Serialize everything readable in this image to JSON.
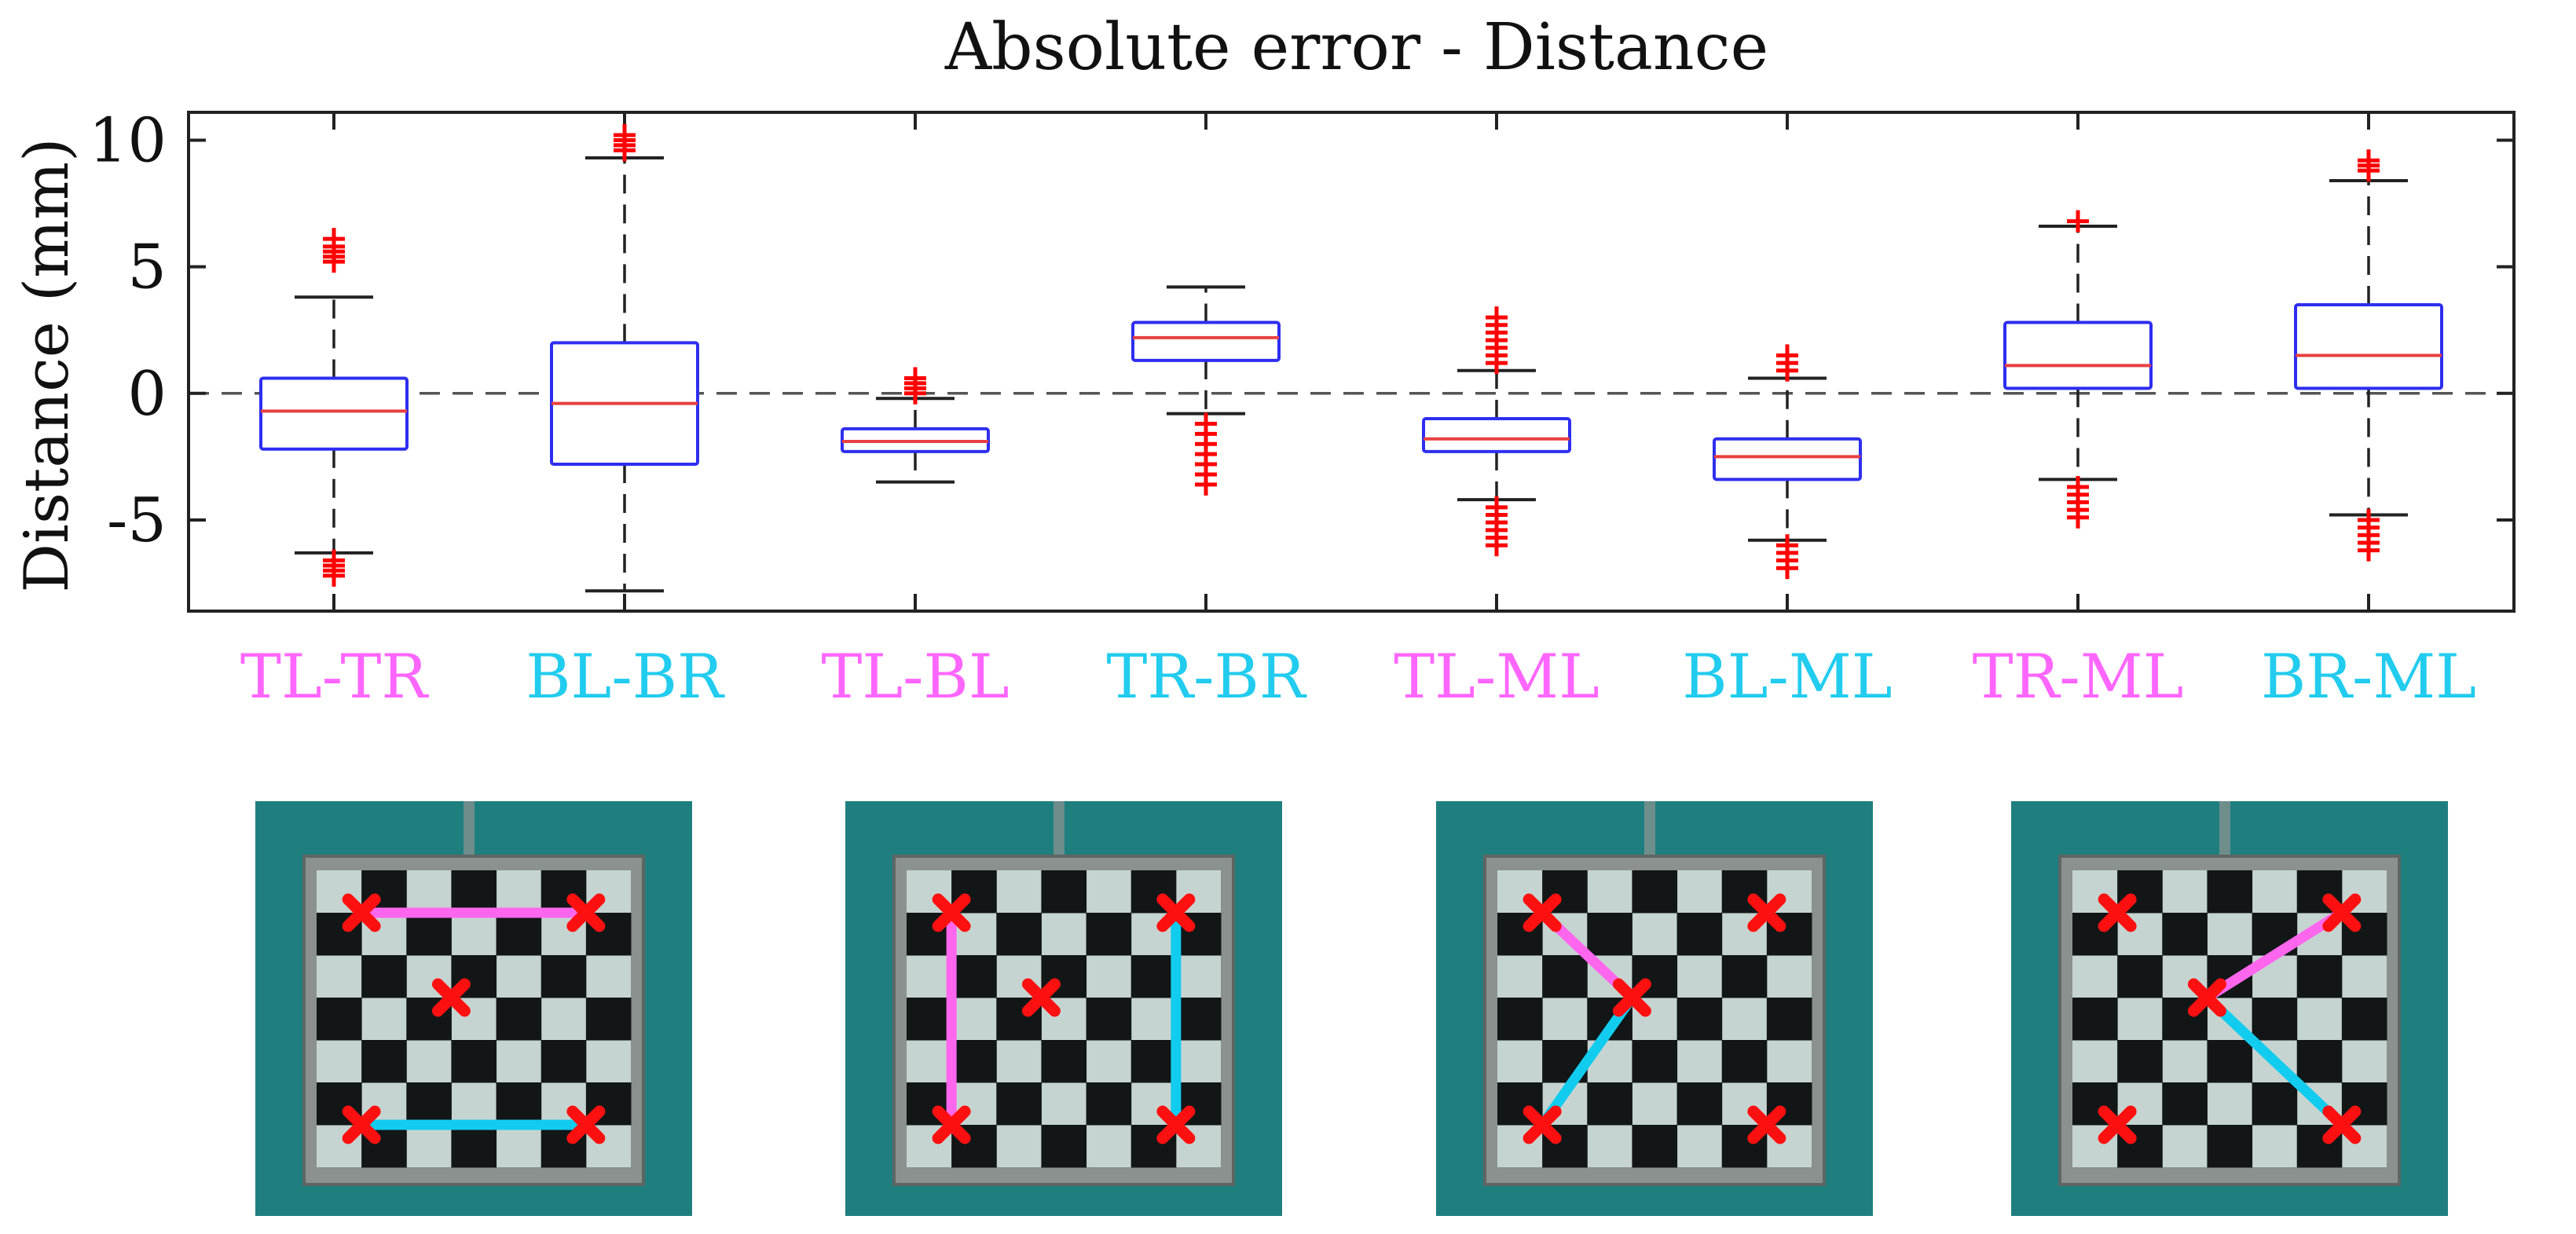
{
  "chart_data": {
    "type": "box",
    "title": "Absolute error - Distance",
    "ylabel": "Distance (mm)",
    "xlabel": "",
    "ylim": [
      -8.6,
      11.1
    ],
    "yticks": [
      10,
      5,
      0,
      -5
    ],
    "ytick_labels": [
      "10",
      "5",
      "0",
      "-5"
    ],
    "reference_line": 0,
    "grid": false,
    "colors": {
      "box": "#2e2ef0",
      "median": "#e84040",
      "whisker": "#222222",
      "outlier": "#ff0000",
      "label_magenta": "#ff66ff",
      "label_cyan": "#22ccee",
      "segment_magenta": "#ff66ee",
      "segment_cyan": "#11ccee",
      "marker": "#ff1010",
      "water": "#1f7f7f"
    },
    "categories": [
      "TL-TR",
      "BL-BR",
      "TL-BL",
      "TR-BR",
      "TL-ML",
      "BL-ML",
      "TR-ML",
      "BR-ML"
    ],
    "category_colors": [
      "magenta",
      "cyan",
      "magenta",
      "cyan",
      "magenta",
      "cyan",
      "magenta",
      "cyan"
    ],
    "boxes": [
      {
        "label": "TL-TR",
        "whisker_low": -6.3,
        "q1": -2.2,
        "median": -0.7,
        "q3": 0.6,
        "whisker_high": 3.8,
        "outliers_low": [
          -6.6,
          -6.8,
          -7.0,
          -7.2
        ],
        "outliers_high": [
          5.2,
          5.4,
          5.6,
          5.8,
          6.1
        ]
      },
      {
        "label": "BL-BR",
        "whisker_low": -7.8,
        "q1": -2.8,
        "median": -0.4,
        "q3": 2.0,
        "whisker_high": 9.3,
        "outliers_low": [],
        "outliers_high": [
          9.6,
          9.8,
          10.0,
          10.2
        ]
      },
      {
        "label": "TL-BL",
        "whisker_low": -3.5,
        "q1": -2.3,
        "median": -1.9,
        "q3": -1.4,
        "whisker_high": -0.2,
        "outliers_low": [],
        "outliers_high": [
          0.0,
          0.2,
          0.4,
          0.6
        ]
      },
      {
        "label": "TR-BR",
        "whisker_low": -0.8,
        "q1": 1.3,
        "median": 2.2,
        "q3": 2.8,
        "whisker_high": 4.2,
        "outliers_low": [
          -1.2,
          -1.6,
          -2.0,
          -2.4,
          -2.8,
          -3.2,
          -3.6
        ],
        "outliers_high": []
      },
      {
        "label": "TL-ML",
        "whisker_low": -4.2,
        "q1": -2.3,
        "median": -1.8,
        "q3": -1.0,
        "whisker_high": 0.9,
        "outliers_low": [
          -4.5,
          -4.8,
          -5.1,
          -5.4,
          -5.7,
          -6.0
        ],
        "outliers_high": [
          1.2,
          1.5,
          1.8,
          2.1,
          2.4,
          2.7,
          3.0
        ]
      },
      {
        "label": "BL-ML",
        "whisker_low": -5.8,
        "q1": -3.4,
        "median": -2.5,
        "q3": -1.8,
        "whisker_high": 0.6,
        "outliers_low": [
          -6.0,
          -6.3,
          -6.6,
          -6.9
        ],
        "outliers_high": [
          0.9,
          1.2,
          1.5
        ]
      },
      {
        "label": "TR-ML",
        "whisker_low": -3.4,
        "q1": 0.2,
        "median": 1.1,
        "q3": 2.8,
        "whisker_high": 6.6,
        "outliers_low": [
          -3.7,
          -4.0,
          -4.3,
          -4.6,
          -4.9
        ],
        "outliers_high": [
          6.8
        ]
      },
      {
        "label": "BR-ML",
        "whisker_low": -4.8,
        "q1": 0.2,
        "median": 1.5,
        "q3": 3.5,
        "whisker_high": 8.4,
        "outliers_low": [
          -5.0,
          -5.3,
          -5.6,
          -5.9,
          -6.2
        ],
        "outliers_high": [
          8.8,
          9.0,
          9.2
        ]
      }
    ],
    "reference_images": [
      {
        "icon": "checkerboard-photo",
        "markers": [
          "TL",
          "TR",
          "ML",
          "BL",
          "BR"
        ],
        "segments": [
          {
            "from": "TL",
            "to": "TR",
            "color": "magenta"
          },
          {
            "from": "BL",
            "to": "BR",
            "color": "cyan"
          }
        ]
      },
      {
        "icon": "checkerboard-photo",
        "markers": [
          "TL",
          "TR",
          "ML",
          "BL",
          "BR"
        ],
        "segments": [
          {
            "from": "TL",
            "to": "BL",
            "color": "magenta"
          },
          {
            "from": "TR",
            "to": "BR",
            "color": "cyan"
          }
        ]
      },
      {
        "icon": "checkerboard-photo",
        "markers": [
          "TL",
          "TR",
          "ML",
          "BL",
          "BR"
        ],
        "segments": [
          {
            "from": "TL",
            "to": "ML",
            "color": "magenta"
          },
          {
            "from": "BL",
            "to": "ML",
            "color": "cyan"
          }
        ]
      },
      {
        "icon": "checkerboard-photo",
        "markers": [
          "TL",
          "TR",
          "ML",
          "BL",
          "BR"
        ],
        "segments": [
          {
            "from": "TR",
            "to": "ML",
            "color": "magenta"
          },
          {
            "from": "BR",
            "to": "ML",
            "color": "cyan"
          }
        ]
      }
    ]
  }
}
